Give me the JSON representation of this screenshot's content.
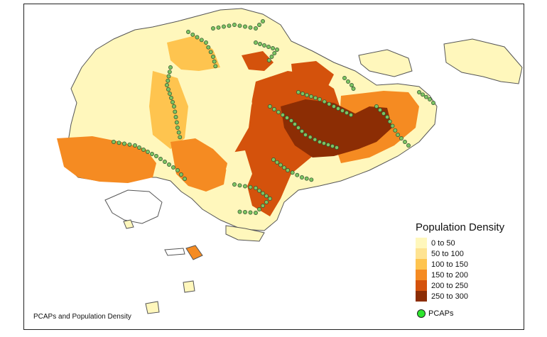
{
  "map": {
    "caption": "PCAPs and Population Density",
    "legend_title": "Population Density",
    "classes": [
      {
        "label": "0 to 50",
        "color": "#fff7bc"
      },
      {
        "label": "50 to 100",
        "color": "#fee391"
      },
      {
        "label": "100 to 150",
        "color": "#fec44f"
      },
      {
        "label": "150 to 200",
        "color": "#f58b22"
      },
      {
        "label": "200 to 250",
        "color": "#d4520c"
      },
      {
        "label": "250 to 300",
        "color": "#8c2d04"
      }
    ],
    "pcap_label": "PCAPs",
    "pcap_color": "#2ee62e",
    "pcap_map_fill": "#7cc462"
  }
}
